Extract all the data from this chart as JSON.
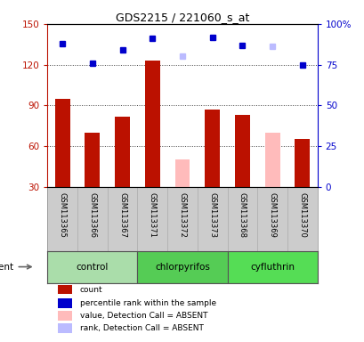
{
  "title": "GDS2215 / 221060_s_at",
  "samples": [
    "GSM113365",
    "GSM113366",
    "GSM113367",
    "GSM113371",
    "GSM113372",
    "GSM113373",
    "GSM113368",
    "GSM113369",
    "GSM113370"
  ],
  "groups": [
    {
      "label": "control",
      "start": 0,
      "end": 3,
      "color": "#aaddaa"
    },
    {
      "label": "chlorpyrifos",
      "start": 3,
      "end": 6,
      "color": "#55cc55"
    },
    {
      "label": "cyfluthrin",
      "start": 6,
      "end": 9,
      "color": "#55dd55"
    }
  ],
  "count_values": [
    95,
    70,
    82,
    123,
    null,
    87,
    83,
    null,
    65
  ],
  "rank_values_present": [
    88,
    76,
    84,
    91,
    null,
    92,
    87,
    null,
    75
  ],
  "absent_count_values": [
    null,
    null,
    null,
    null,
    50,
    null,
    null,
    70,
    null
  ],
  "absent_rank_values": [
    null,
    null,
    null,
    null,
    80,
    null,
    null,
    86,
    null
  ],
  "detection_absent": [
    false,
    false,
    false,
    false,
    true,
    false,
    false,
    true,
    false
  ],
  "color_count_present": "#bb1100",
  "color_rank_present": "#0000cc",
  "color_count_absent": "#ffbbbb",
  "color_rank_absent": "#bbbbff",
  "ylim_left": [
    30,
    150
  ],
  "ylim_right": [
    0,
    100
  ],
  "yticks_left": [
    30,
    60,
    90,
    120,
    150
  ],
  "yticks_right": [
    0,
    25,
    50,
    75,
    100
  ],
  "ytick_labels_right": [
    "0",
    "25",
    "50",
    "75",
    "100%"
  ],
  "color_left_axis": "#bb1100",
  "color_right_axis": "#0000cc",
  "bg_label": "#cccccc",
  "legend_items": [
    {
      "color": "#bb1100",
      "label": "count",
      "marker": "s"
    },
    {
      "color": "#0000cc",
      "label": "percentile rank within the sample",
      "marker": "s"
    },
    {
      "color": "#ffbbbb",
      "label": "value, Detection Call = ABSENT",
      "marker": "s"
    },
    {
      "color": "#bbbbff",
      "label": "rank, Detection Call = ABSENT",
      "marker": "s"
    }
  ],
  "bar_width": 0.5
}
